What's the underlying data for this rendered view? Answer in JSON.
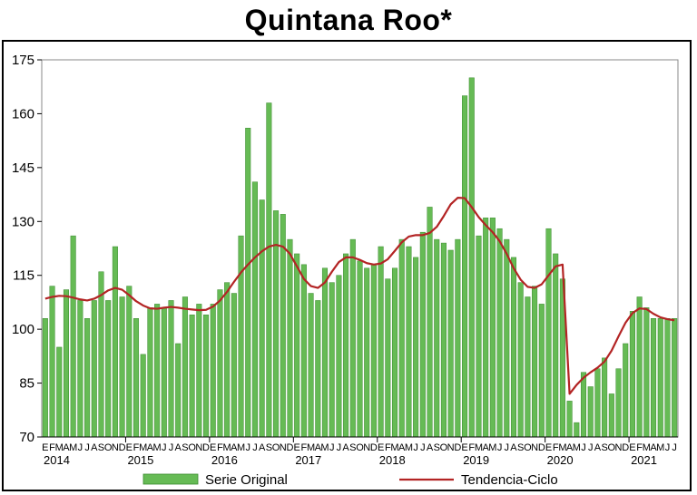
{
  "title_text": "Quintana Roo*",
  "chart_data": {
    "type": "bar",
    "title": "Quintana Roo*",
    "ylim": [
      70,
      175
    ],
    "yticks": [
      70,
      85,
      100,
      115,
      130,
      145,
      160,
      175
    ],
    "month_letters": [
      "E",
      "F",
      "M",
      "A",
      "M",
      "J",
      "J",
      "A",
      "S",
      "O",
      "N",
      "D"
    ],
    "years": [
      "2014",
      "2015",
      "2016",
      "2017",
      "2018",
      "2019",
      "2020",
      "2021"
    ],
    "x_start": "2014-01",
    "series": [
      {
        "name": "Serie Original",
        "type": "bar",
        "color": "#66bb55",
        "values": [
          103,
          112,
          95,
          111,
          126,
          108,
          103,
          108,
          116,
          108,
          123,
          109,
          112,
          103,
          93,
          106,
          107,
          106,
          108,
          96,
          109,
          104,
          107,
          104,
          107,
          111,
          113,
          110,
          126,
          156,
          141,
          136,
          163,
          133,
          132,
          125,
          121,
          118,
          110,
          108,
          117,
          113,
          115,
          121,
          125,
          119,
          117,
          118,
          123,
          114,
          117,
          125,
          123,
          120,
          127,
          134,
          125,
          124,
          122,
          125,
          165,
          170,
          126,
          131,
          131,
          128,
          125,
          120,
          113,
          109,
          112,
          107,
          128,
          121,
          114,
          80,
          74,
          88,
          84,
          89,
          92,
          82,
          89,
          96,
          105,
          109,
          106,
          103,
          103,
          103,
          103
        ]
      },
      {
        "name": "Tendencia-Ciclo",
        "type": "line",
        "color": "#b32424",
        "values": [
          108.5,
          109,
          109.3,
          109.2,
          108.8,
          108.3,
          108,
          108.5,
          109.5,
          110.8,
          111.5,
          111,
          109.5,
          107.8,
          106.6,
          105.8,
          105.7,
          106,
          106.2,
          106,
          105.7,
          105.5,
          105.3,
          105.4,
          106.3,
          108,
          110.4,
          113.2,
          115.8,
          118,
          120,
          121.7,
          123,
          123.5,
          123,
          121,
          117.5,
          114,
          112,
          111.5,
          113,
          116,
          118.7,
          120,
          120,
          119.3,
          118.4,
          118,
          118.3,
          119.5,
          121.8,
          124.2,
          125.8,
          126.2,
          126.2,
          126.8,
          128.5,
          131.5,
          134.8,
          136.6,
          136.5,
          134,
          131.2,
          129,
          127,
          124.5,
          121,
          117,
          113.8,
          111.8,
          111.5,
          112.5,
          115,
          117.5,
          118,
          82,
          84.5,
          86.5,
          88,
          89.3,
          91,
          94,
          98,
          101.8,
          104.5,
          105.8,
          105.6,
          104.3,
          103.3,
          102.8,
          102.5
        ]
      }
    ],
    "legend": [
      "Serie Original",
      "Tendencia-Ciclo"
    ],
    "legend_position": "bottom",
    "grid": false
  }
}
